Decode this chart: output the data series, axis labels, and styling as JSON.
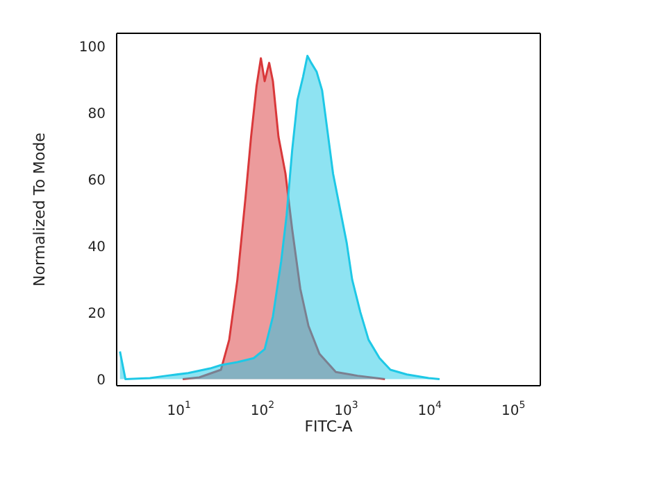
{
  "chart_data": {
    "type": "area",
    "xlabel": "FITC-A",
    "ylabel": "Normalized To Mode",
    "log": "x",
    "xlim": [
      1.8,
      210000
    ],
    "ylim": [
      -2,
      104
    ],
    "xticks": [
      {
        "value": 10,
        "label": "10$^{1}$"
      },
      {
        "value": 100,
        "label": "10$^{2}$"
      },
      {
        "value": 1000,
        "label": "10$^{3}$"
      },
      {
        "value": 10000,
        "label": "10$^{4}$"
      },
      {
        "value": 100000,
        "label": "10$^{5}$"
      }
    ],
    "yticks": [
      0,
      20,
      40,
      60,
      80,
      100
    ],
    "legend": false,
    "marker": "none",
    "series": [
      {
        "color": "#d9383a",
        "x": [
          11.1,
          17.5,
          31.8,
          39.9,
          50,
          62.7,
          72.9,
          84.8,
          95.5,
          106,
          120,
          133,
          155,
          188,
          226,
          283,
          354,
          479,
          752,
          1370,
          2910
        ],
        "values": [
          0,
          0.5,
          2.8,
          11.8,
          29.9,
          54.9,
          72.9,
          88.2,
          96.5,
          89.6,
          95.1,
          89.6,
          72.9,
          61.8,
          45.1,
          27.1,
          16,
          7.6,
          2.1,
          1,
          0
        ]
      },
      {
        "color": "#1ec8e6",
        "x": [
          1.97,
          2.29,
          4.5,
          7.1,
          12.9,
          23.6,
          31.8,
          50,
          78.5,
          106,
          133,
          167,
          194,
          226,
          262,
          305,
          344,
          382,
          444,
          516,
          600,
          697,
          873,
          1016,
          1180,
          1479,
          1854,
          2506,
          3381,
          5310,
          9700,
          13100
        ],
        "values": [
          8.3,
          0,
          0.3,
          1,
          1.8,
          3.2,
          4.2,
          5.1,
          6.3,
          9,
          18.8,
          35.4,
          49.3,
          68.8,
          84,
          90.9,
          97.2,
          95.1,
          92.4,
          86.8,
          74.3,
          61.8,
          49.3,
          40.9,
          29.9,
          20.1,
          11.8,
          6.3,
          2.8,
          1.4,
          0.3,
          0
        ]
      }
    ]
  }
}
